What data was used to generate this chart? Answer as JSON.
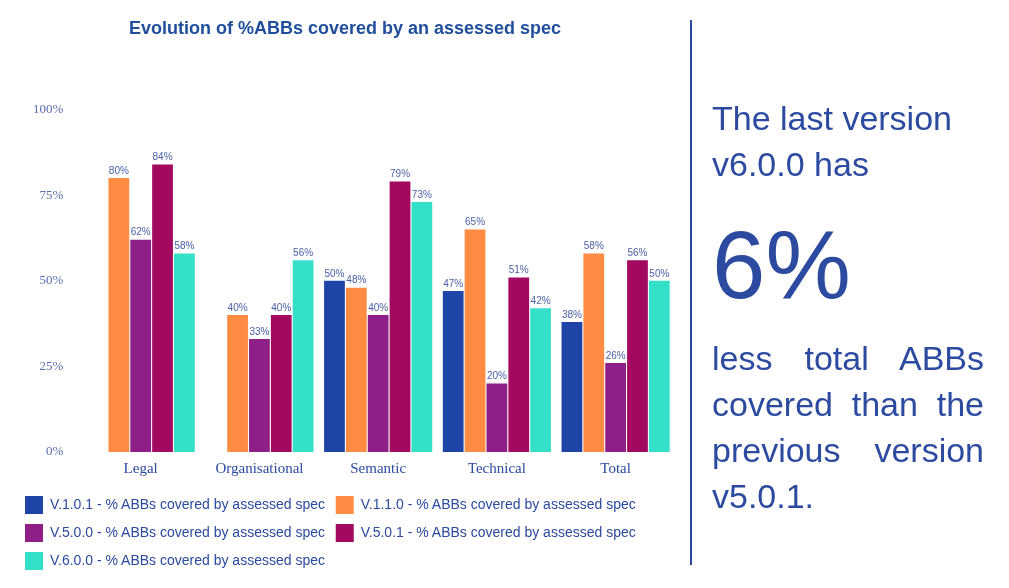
{
  "chart_data": {
    "type": "bar",
    "title": "Evolution of %ABBs covered by an assessed spec",
    "categories": [
      "Legal",
      "Organisational",
      "Semantic",
      "Technical",
      "Total"
    ],
    "series": [
      {
        "name": "V.1.0.1 - % ABBs covered by assessed spec",
        "color": "#1f44a8",
        "values": [
          null,
          null,
          50,
          47,
          38
        ],
        "value_labels": [
          null,
          null,
          "50%",
          "47%",
          "38%"
        ]
      },
      {
        "name": "V.1.1.0 - % ABBs covered by assessed spec",
        "color": "#ff8c42",
        "values": [
          80,
          40,
          48,
          65,
          58
        ],
        "value_labels": [
          "80%",
          "40%",
          "48%",
          "65%",
          "58%"
        ]
      },
      {
        "name": "V.5.0.0 - % ABBs covered by assessed spec",
        "color": "#8e1f86",
        "values": [
          62,
          33,
          40,
          20,
          26
        ],
        "value_labels": [
          "62%",
          "33%",
          "40%",
          "20%",
          "26%"
        ]
      },
      {
        "name": "V.5.0.1 - % ABBs covered by assessed spec",
        "color": "#a3095e",
        "values": [
          84,
          40,
          79,
          51,
          56
        ],
        "value_labels": [
          "84%",
          "40%",
          "79%",
          "51%",
          "56%"
        ]
      },
      {
        "name": "V.6.0.0 - % ABBs covered by assessed spec",
        "color": "#35e0c8",
        "values": [
          58,
          56,
          73,
          42,
          50
        ],
        "value_labels": [
          "58%",
          "56%",
          "73%",
          "42%",
          "50%"
        ]
      }
    ],
    "ylim": [
      0,
      100
    ],
    "yticks": [
      {
        "value": 0,
        "label": "0%"
      },
      {
        "value": 25,
        "label": "25%"
      },
      {
        "value": 50,
        "label": "50%"
      },
      {
        "value": 75,
        "label": "75%"
      },
      {
        "value": 100,
        "label": "100%"
      }
    ],
    "grid": false,
    "legend": "bottom",
    "annotations": [
      "The last version v6.0.0 has",
      "6%",
      "less total ABBs covered than the previous version v5.0.1."
    ]
  }
}
